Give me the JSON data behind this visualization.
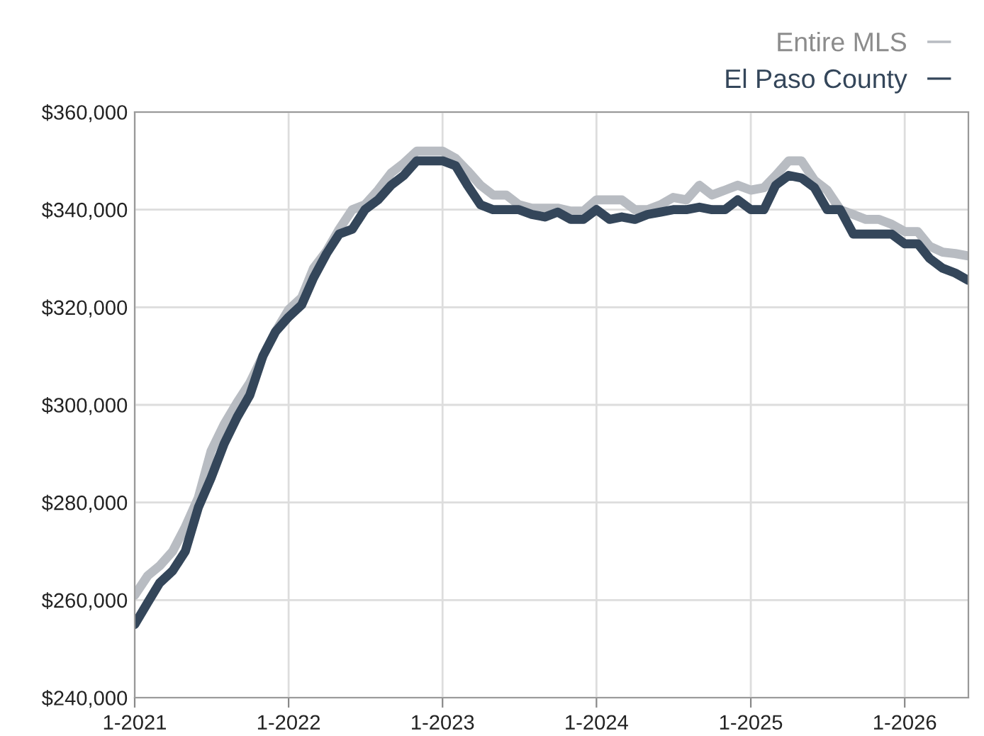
{
  "chart_data": {
    "type": "line",
    "x": [
      "2021-01",
      "2021-02",
      "2021-03",
      "2021-04",
      "2021-05",
      "2021-06",
      "2021-07",
      "2021-08",
      "2021-09",
      "2021-10",
      "2021-11",
      "2021-12",
      "2022-01",
      "2022-02",
      "2022-03",
      "2022-04",
      "2022-05",
      "2022-06",
      "2022-07",
      "2022-08",
      "2022-09",
      "2022-10",
      "2022-11",
      "2022-12",
      "2023-01",
      "2023-02",
      "2023-03",
      "2023-04",
      "2023-05",
      "2023-06",
      "2023-07",
      "2023-08",
      "2023-09",
      "2023-10",
      "2023-11",
      "2023-12",
      "2024-01",
      "2024-02",
      "2024-03",
      "2024-04",
      "2024-05",
      "2024-06",
      "2024-07",
      "2024-08",
      "2024-09",
      "2024-10",
      "2024-11",
      "2024-12",
      "2025-01",
      "2025-02",
      "2025-03",
      "2025-04",
      "2025-05",
      "2025-06",
      "2025-07",
      "2025-08",
      "2025-09",
      "2025-10",
      "2025-11",
      "2025-12",
      "2026-01",
      "2026-02",
      "2026-03",
      "2026-04",
      "2026-05",
      "2026-06"
    ],
    "series": [
      {
        "name": "Entire MLS",
        "color": "#b8bcc2",
        "values": [
          261000,
          265000,
          267000,
          270000,
          275000,
          281000,
          290500,
          296000,
          300500,
          304500,
          310000,
          315000,
          319500,
          322000,
          328000,
          331500,
          336000,
          340000,
          341000,
          344000,
          347500,
          349500,
          352000,
          352000,
          352000,
          350500,
          348000,
          345000,
          343000,
          343000,
          341000,
          340300,
          340300,
          340300,
          339700,
          339700,
          342000,
          342000,
          342000,
          340000,
          340000,
          341000,
          342500,
          342000,
          345000,
          343000,
          344000,
          345000,
          344000,
          344500,
          347000,
          350000,
          350000,
          346000,
          344000,
          340000,
          339000,
          338000,
          338000,
          337000,
          335500,
          335500,
          332500,
          331300,
          331000,
          330500
        ]
      },
      {
        "name": "El Paso County",
        "color": "#34465a",
        "values": [
          255000,
          259500,
          263500,
          266000,
          270000,
          279000,
          285000,
          292000,
          297500,
          302000,
          310000,
          315000,
          318000,
          320500,
          326000,
          331000,
          335000,
          336000,
          340000,
          342000,
          345000,
          347000,
          350000,
          350000,
          350000,
          349000,
          345000,
          341000,
          340000,
          340000,
          340000,
          339000,
          338500,
          339500,
          338000,
          338000,
          340000,
          338000,
          338500,
          338000,
          339000,
          339500,
          340000,
          340000,
          340500,
          340000,
          340000,
          342000,
          340000,
          340000,
          345000,
          347000,
          346500,
          344500,
          340000,
          340000,
          335000,
          335000,
          335000,
          335000,
          333000,
          333000,
          330000,
          328000,
          327000,
          325500
        ]
      }
    ],
    "xlim": [
      "2021-01",
      "2026-06"
    ],
    "xticks": [
      {
        "value": "2021-01",
        "label": "1-2021"
      },
      {
        "value": "2022-01",
        "label": "1-2022"
      },
      {
        "value": "2023-01",
        "label": "1-2023"
      },
      {
        "value": "2024-01",
        "label": "1-2024"
      },
      {
        "value": "2025-01",
        "label": "1-2025"
      },
      {
        "value": "2026-01",
        "label": "1-2026"
      }
    ],
    "ylim": [
      240000,
      360000
    ],
    "yticks": [
      {
        "value": 240000,
        "label": "$240,000"
      },
      {
        "value": 260000,
        "label": "$260,000"
      },
      {
        "value": 280000,
        "label": "$280,000"
      },
      {
        "value": 300000,
        "label": "$300,000"
      },
      {
        "value": 320000,
        "label": "$320,000"
      },
      {
        "value": 340000,
        "label": "$340,000"
      },
      {
        "value": 360000,
        "label": "$360,000"
      }
    ],
    "grid": true,
    "legend": "top right",
    "line_style": "solid"
  }
}
